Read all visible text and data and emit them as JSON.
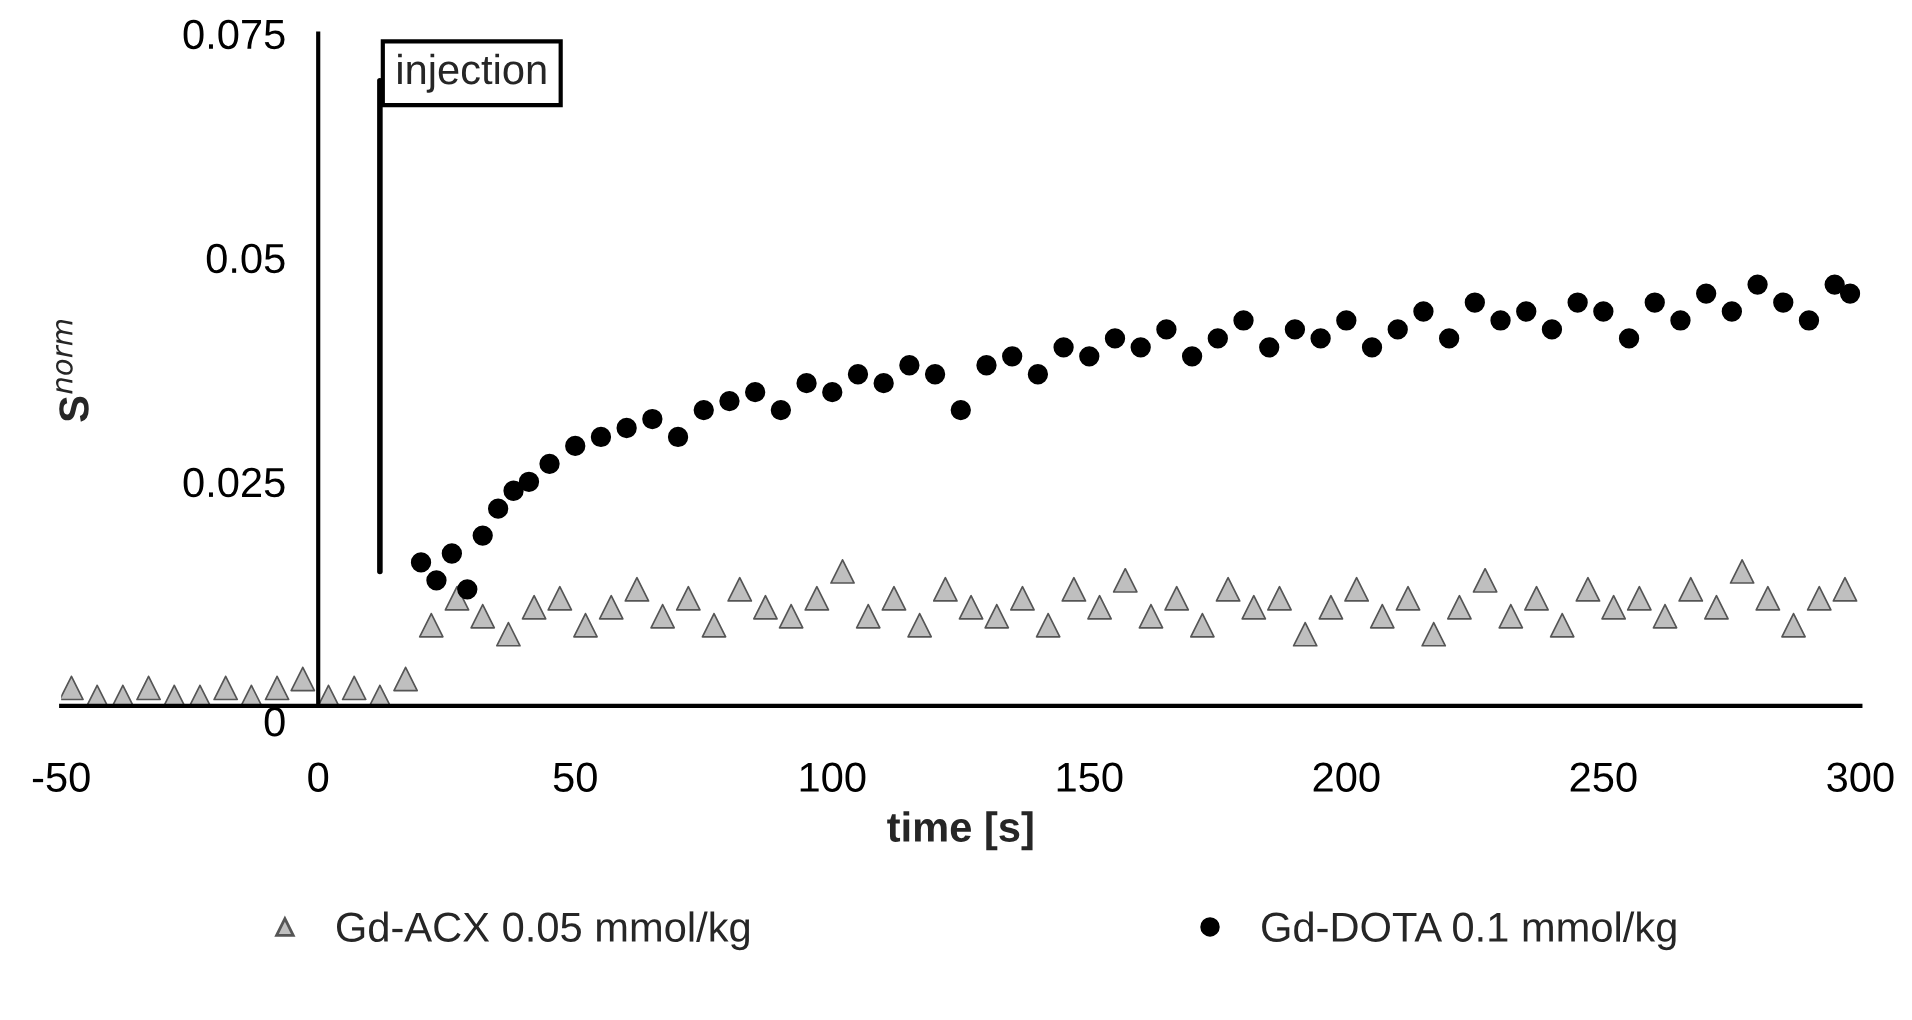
{
  "chart_data": {
    "type": "scatter",
    "xlabel": "time [s]",
    "ylabel": "S$^{norm}$",
    "xlim": [
      -50,
      300
    ],
    "xticks": [
      -50,
      0,
      50,
      100,
      150,
      200,
      250,
      300
    ],
    "ylim": [
      0,
      0.075
    ],
    "yticks": [
      0,
      {
        "value": 0.025,
        "label": "0.025"
      },
      {
        "value": 0.05,
        "label": "0.05"
      },
      {
        "value": 0.075,
        "label": "0.075"
      }
    ],
    "grid": false,
    "legend": "bottom",
    "ref_lines": [
      {
        "axis": "x",
        "value": 12,
        "label": "injection",
        "color": "#000000",
        "line_style": "solid"
      }
    ],
    "series": [
      {
        "name": "Gd-ACX 0.05 mmol/kg",
        "color": "#bfbfbf",
        "marker": "triangle",
        "x": [
          -48,
          -43,
          -38,
          -33,
          -28,
          -23,
          -18,
          -13,
          -8,
          -3,
          2,
          7,
          12,
          17,
          22,
          27,
          32,
          37,
          42,
          47,
          52,
          57,
          62,
          67,
          72,
          77,
          82,
          87,
          92,
          97,
          102,
          107,
          112,
          117,
          122,
          127,
          132,
          137,
          142,
          147,
          152,
          157,
          162,
          167,
          172,
          177,
          182,
          187,
          192,
          197,
          202,
          207,
          212,
          217,
          222,
          227,
          232,
          237,
          242,
          247,
          252,
          257,
          262,
          267,
          272,
          277,
          282,
          287,
          292,
          297
        ],
        "values": [
          0.002,
          0.001,
          0.001,
          0.002,
          0.001,
          0.001,
          0.002,
          0.001,
          0.002,
          0.003,
          0.001,
          0.002,
          0.001,
          0.003,
          0.009,
          0.012,
          0.01,
          0.008,
          0.011,
          0.012,
          0.009,
          0.011,
          0.013,
          0.01,
          0.012,
          0.009,
          0.013,
          0.011,
          0.01,
          0.012,
          0.015,
          0.01,
          0.012,
          0.009,
          0.013,
          0.011,
          0.01,
          0.012,
          0.009,
          0.013,
          0.011,
          0.014,
          0.01,
          0.012,
          0.009,
          0.013,
          0.011,
          0.012,
          0.008,
          0.011,
          0.013,
          0.01,
          0.012,
          0.008,
          0.011,
          0.014,
          0.01,
          0.012,
          0.009,
          0.013,
          0.011,
          0.012,
          0.01,
          0.013,
          0.011,
          0.015,
          0.012,
          0.009,
          0.012,
          0.013
        ]
      },
      {
        "name": "Gd-DOTA 0.1 mmol/kg",
        "color": "#000000",
        "marker": "circle",
        "x": [
          20,
          23,
          26,
          29,
          32,
          35,
          38,
          41,
          45,
          50,
          55,
          60,
          65,
          70,
          75,
          80,
          85,
          90,
          95,
          100,
          105,
          110,
          115,
          120,
          125,
          130,
          135,
          140,
          145,
          150,
          155,
          160,
          165,
          170,
          175,
          180,
          185,
          190,
          195,
          200,
          205,
          210,
          215,
          220,
          225,
          230,
          235,
          240,
          245,
          250,
          255,
          260,
          265,
          270,
          275,
          280,
          285,
          290,
          295,
          298
        ],
        "values": [
          0.016,
          0.014,
          0.017,
          0.013,
          0.019,
          0.022,
          0.024,
          0.025,
          0.027,
          0.029,
          0.03,
          0.031,
          0.032,
          0.03,
          0.033,
          0.034,
          0.035,
          0.033,
          0.036,
          0.035,
          0.037,
          0.036,
          0.038,
          0.037,
          0.033,
          0.038,
          0.039,
          0.037,
          0.04,
          0.039,
          0.041,
          0.04,
          0.042,
          0.039,
          0.041,
          0.043,
          0.04,
          0.042,
          0.041,
          0.043,
          0.04,
          0.042,
          0.044,
          0.041,
          0.045,
          0.043,
          0.044,
          0.042,
          0.045,
          0.044,
          0.041,
          0.045,
          0.043,
          0.046,
          0.044,
          0.047,
          0.045,
          0.043,
          0.047,
          0.046
        ]
      }
    ]
  }
}
